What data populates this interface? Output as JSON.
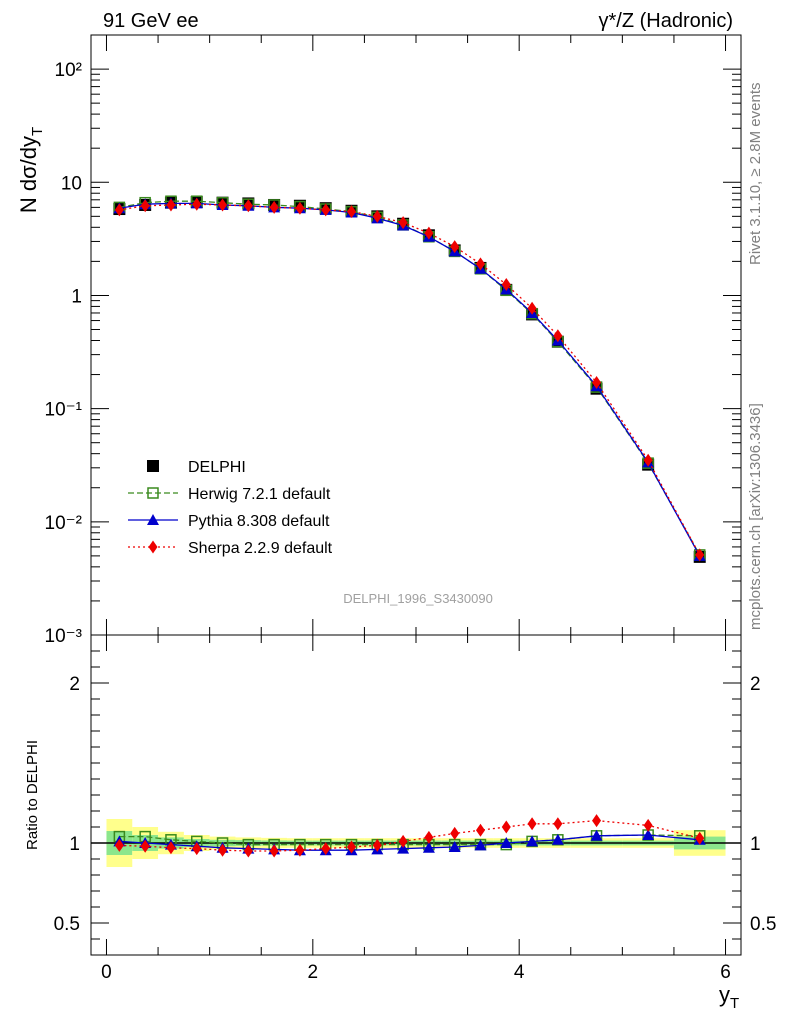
{
  "header": {
    "left": "91 GeV ee",
    "right": "γ*/Z (Hadronic)"
  },
  "side_labels": {
    "top": "Rivet 3.1.10, ≥ 2.8M events",
    "bottom": "mcplots.cern.ch [arXiv:1306.3436]"
  },
  "analysis_id": "DELPHI_1996_S3430090",
  "chart_data": [
    {
      "type": "line",
      "panel": "main",
      "ylabel": "N dσ/dy",
      "ylabel_sub": "T",
      "yscale": "log",
      "ylim": [
        0.001,
        200
      ],
      "xlim": [
        -0.15,
        6.15
      ],
      "yticks": [
        "10²",
        "10",
        "1",
        "10⁻¹",
        "10⁻²",
        "10⁻³"
      ],
      "legend_position": "middle-left",
      "x": [
        0.125,
        0.375,
        0.625,
        0.875,
        1.125,
        1.375,
        1.625,
        1.875,
        2.125,
        2.375,
        2.625,
        2.875,
        3.125,
        3.375,
        3.625,
        3.875,
        4.125,
        4.375,
        4.75,
        5.25,
        5.75
      ],
      "series": [
        {
          "name": "DELPHI",
          "color": "#000000",
          "marker": "square-filled",
          "line": "none",
          "values": [
            5.8,
            6.3,
            6.6,
            6.7,
            6.6,
            6.5,
            6.3,
            6.2,
            5.9,
            5.6,
            5.0,
            4.3,
            3.4,
            2.5,
            1.75,
            1.12,
            0.68,
            0.39,
            0.15,
            0.032,
            0.0049
          ]
        },
        {
          "name": "Herwig 7.2.1 default",
          "color": "#3a8a1e",
          "marker": "square-open",
          "line": "dashed",
          "values": [
            6.0,
            6.6,
            6.8,
            6.8,
            6.6,
            6.4,
            6.3,
            6.1,
            5.8,
            5.5,
            4.9,
            4.2,
            3.3,
            2.45,
            1.72,
            1.11,
            0.69,
            0.39,
            0.155,
            0.033,
            0.0051
          ]
        },
        {
          "name": "Pythia 8.308 default",
          "color": "#0000cc",
          "marker": "triangle",
          "line": "solid",
          "values": [
            5.9,
            6.4,
            6.5,
            6.5,
            6.3,
            6.2,
            6.0,
            5.9,
            5.7,
            5.4,
            4.8,
            4.15,
            3.3,
            2.45,
            1.72,
            1.13,
            0.7,
            0.4,
            0.158,
            0.0335,
            0.005
          ]
        },
        {
          "name": "Sherpa 2.2.9 default",
          "color": "#ee0000",
          "marker": "diamond",
          "line": "dotted",
          "values": [
            5.7,
            6.2,
            6.3,
            6.4,
            6.3,
            6.2,
            6.0,
            5.9,
            5.7,
            5.5,
            5.0,
            4.4,
            3.55,
            2.7,
            1.9,
            1.25,
            0.77,
            0.44,
            0.17,
            0.035,
            0.0051
          ]
        }
      ]
    },
    {
      "type": "line",
      "panel": "ratio",
      "ylabel": "Ratio to DELPHI",
      "xlabel": "y",
      "xlabel_sub": "T",
      "ylim": [
        0.3,
        2.3
      ],
      "xlim": [
        -0.15,
        6.15
      ],
      "yticks": [
        "2",
        "1",
        "0.5"
      ],
      "xticks": [
        "0",
        "2",
        "4",
        "6"
      ],
      "x": [
        0.125,
        0.375,
        0.625,
        0.875,
        1.125,
        1.375,
        1.625,
        1.875,
        2.125,
        2.375,
        2.625,
        2.875,
        3.125,
        3.375,
        3.625,
        3.875,
        4.125,
        4.375,
        4.75,
        5.25,
        5.75
      ],
      "bins": [
        [
          0,
          0.25
        ],
        [
          0.25,
          0.5
        ],
        [
          0.5,
          0.75
        ],
        [
          0.75,
          1.0
        ],
        [
          1.0,
          1.25
        ],
        [
          1.25,
          1.5
        ],
        [
          1.5,
          1.75
        ],
        [
          1.75,
          2.0
        ],
        [
          2.0,
          2.25
        ],
        [
          2.25,
          2.5
        ],
        [
          2.5,
          2.75
        ],
        [
          2.75,
          3.0
        ],
        [
          3.0,
          3.25
        ],
        [
          3.25,
          3.5
        ],
        [
          3.5,
          3.75
        ],
        [
          3.75,
          4.0
        ],
        [
          4.0,
          4.25
        ],
        [
          4.25,
          4.5
        ],
        [
          4.5,
          5.0
        ],
        [
          5.0,
          5.5
        ],
        [
          5.5,
          6.0
        ]
      ],
      "band_green": [
        0.075,
        0.05,
        0.035,
        0.025,
        0.02,
        0.018,
        0.016,
        0.015,
        0.015,
        0.015,
        0.015,
        0.015,
        0.015,
        0.015,
        0.015,
        0.015,
        0.015,
        0.015,
        0.015,
        0.015,
        0.04
      ],
      "band_yellow": [
        0.15,
        0.1,
        0.07,
        0.05,
        0.04,
        0.035,
        0.032,
        0.03,
        0.03,
        0.03,
        0.03,
        0.03,
        0.03,
        0.03,
        0.03,
        0.03,
        0.03,
        0.03,
        0.03,
        0.03,
        0.08
      ],
      "series": [
        {
          "name": "Herwig 7.2.1 default",
          "color": "#3a8a1e",
          "marker": "square-open",
          "line": "dashed",
          "values": [
            1.04,
            1.04,
            1.02,
            1.01,
            1.0,
            0.99,
            0.99,
            0.99,
            0.99,
            0.99,
            0.99,
            0.99,
            0.99,
            0.99,
            0.99,
            0.99,
            1.01,
            1.02,
            1.045,
            1.05,
            1.045
          ]
        },
        {
          "name": "Pythia 8.308 default",
          "color": "#0000cc",
          "marker": "triangle",
          "line": "solid",
          "values": [
            1.01,
            1.0,
            0.99,
            0.98,
            0.97,
            0.965,
            0.96,
            0.955,
            0.955,
            0.955,
            0.96,
            0.965,
            0.97,
            0.975,
            0.985,
            1.0,
            1.01,
            1.02,
            1.045,
            1.05,
            1.02
          ]
        },
        {
          "name": "Sherpa 2.2.9 default",
          "color": "#ee0000",
          "marker": "diamond",
          "line": "dotted",
          "values": [
            0.985,
            0.98,
            0.97,
            0.965,
            0.955,
            0.95,
            0.95,
            0.955,
            0.965,
            0.975,
            0.985,
            1.01,
            1.035,
            1.06,
            1.08,
            1.1,
            1.12,
            1.12,
            1.14,
            1.11,
            1.03
          ]
        }
      ]
    }
  ]
}
